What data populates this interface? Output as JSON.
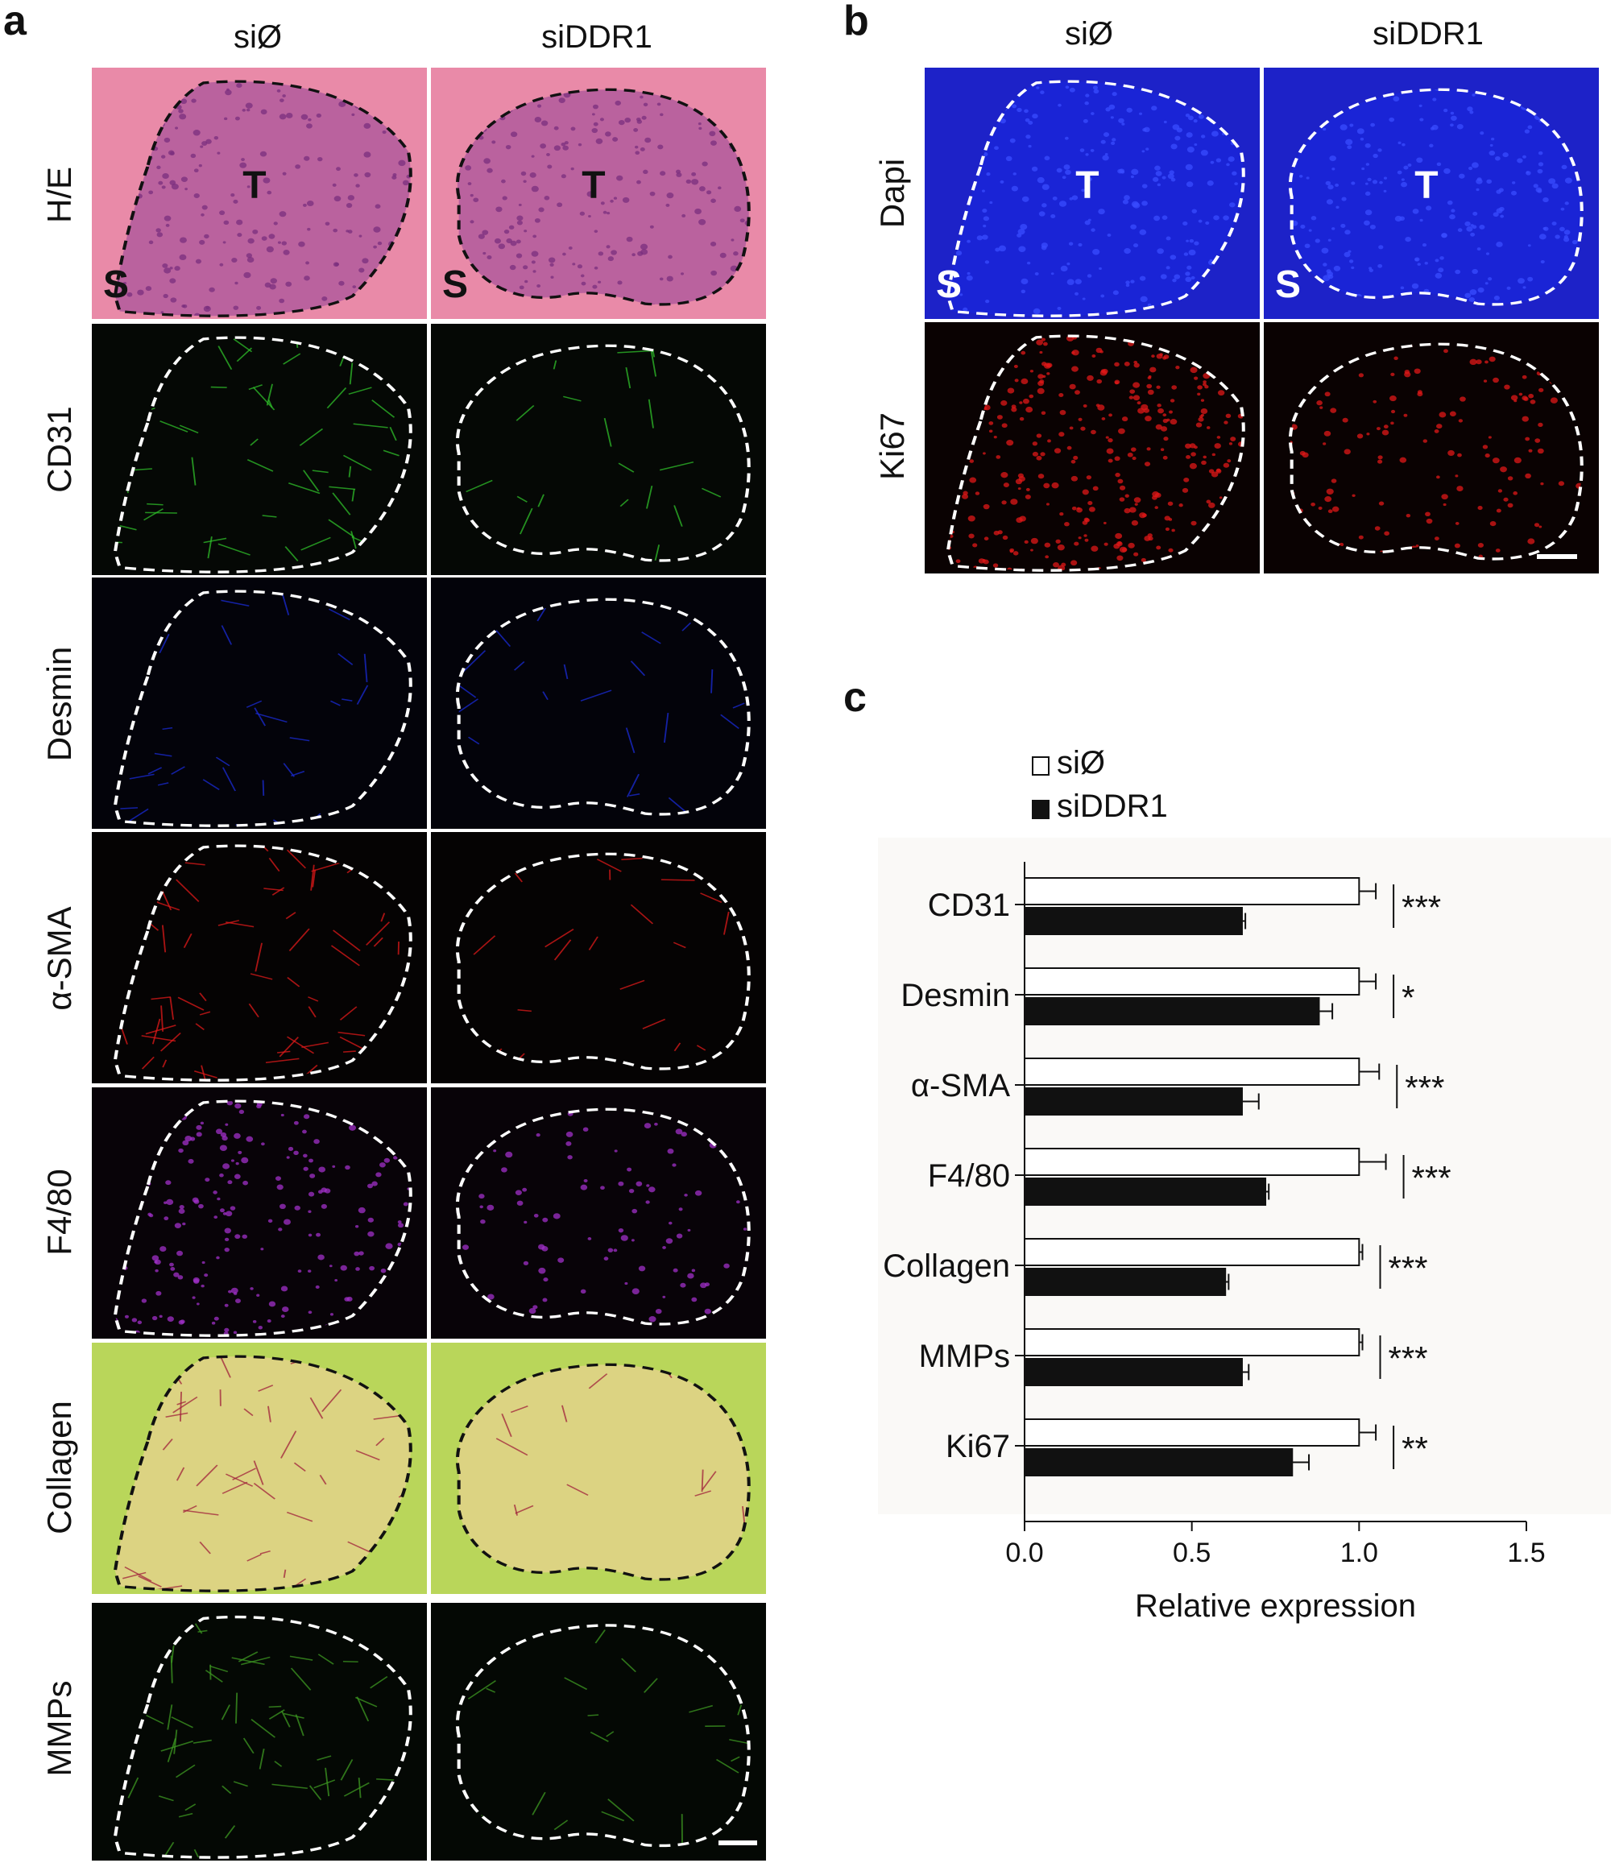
{
  "panel_a": {
    "letter": "a",
    "col_titles": [
      "siØ",
      "siDDR1"
    ],
    "rows": [
      {
        "label": "H/E",
        "style": "he",
        "marker_t": "T",
        "marker_s": "S"
      },
      {
        "label": "CD31",
        "style": "green"
      },
      {
        "label": "Desmin",
        "style": "blue"
      },
      {
        "label": "α-SMA",
        "style": "red"
      },
      {
        "label": "F4/80",
        "style": "purple"
      },
      {
        "label": "Collagen",
        "style": "collagen"
      },
      {
        "label": "MMPs",
        "style": "mmp"
      }
    ]
  },
  "panel_b": {
    "letter": "b",
    "col_titles": [
      "siØ",
      "siDDR1"
    ],
    "rows": [
      {
        "label": "Dapi",
        "style": "dapi",
        "marker_t": "T",
        "marker_s": "S"
      },
      {
        "label": "Ki67",
        "style": "ki67"
      }
    ]
  },
  "panel_c": {
    "letter": "c"
  },
  "colors": {
    "siO_fill": "#ffffff",
    "siDDR1_fill": "#111111",
    "he_bg": "#e98aa8",
    "he_tumor": "#b25a9c",
    "green": "#2fbf2a",
    "blue": "#1a2bd6",
    "red": "#e01a1a",
    "purple": "#a030c8",
    "collagen_bg": "#b9d65a",
    "collagen_tumor": "#e2d28a",
    "dapi": "#1d22c8",
    "ki67": "#e01818"
  },
  "chart_data": {
    "type": "bar",
    "orientation": "horizontal",
    "categories": [
      "CD31",
      "Desmin",
      "α-SMA",
      "F4/80",
      "Collagen",
      "MMPs",
      "Ki67"
    ],
    "series": [
      {
        "name": "siØ",
        "values": [
          1.0,
          1.0,
          1.0,
          1.0,
          1.0,
          1.0,
          1.0
        ],
        "errors": [
          0.05,
          0.05,
          0.06,
          0.08,
          0.01,
          0.01,
          0.05
        ]
      },
      {
        "name": "siDDR1",
        "values": [
          0.65,
          0.88,
          0.65,
          0.72,
          0.6,
          0.65,
          0.8
        ],
        "errors": [
          0.01,
          0.04,
          0.05,
          0.01,
          0.01,
          0.02,
          0.05
        ]
      }
    ],
    "significance": [
      "***",
      "*",
      "***",
      "***",
      "***",
      "***",
      "**"
    ],
    "xlabel": "Relative expression",
    "xlim": [
      0.0,
      1.5
    ],
    "xticks": [
      "0.0",
      "0.5",
      "1.0",
      "1.5"
    ],
    "legend_position": "top-left"
  }
}
